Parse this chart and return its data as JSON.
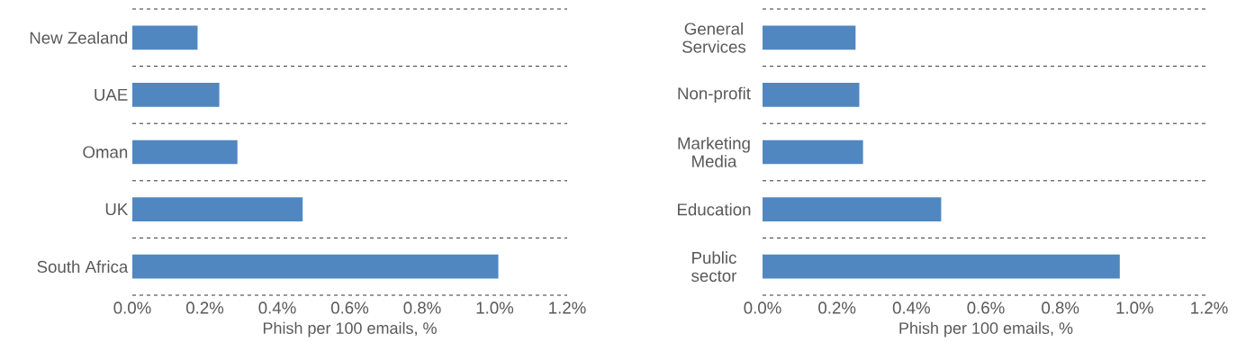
{
  "chart_data": [
    {
      "type": "bar",
      "orientation": "horizontal",
      "categories": [
        "New Zealand",
        "UAE",
        "Oman",
        "UK",
        "South Africa"
      ],
      "values": [
        0.18,
        0.24,
        0.29,
        0.47,
        1.01
      ],
      "color": "#5087c1",
      "xlim": [
        0,
        1.2
      ],
      "xticks": [
        {
          "value": 0,
          "label": "0.0%"
        },
        {
          "value": 0.2,
          "label": "0.2%"
        },
        {
          "value": 0.4,
          "label": "0.4%"
        },
        {
          "value": 0.6,
          "label": "0.6%"
        },
        {
          "value": 0.8,
          "label": "0.8%"
        },
        {
          "value": 1.0,
          "label": "1.0%"
        },
        {
          "value": 1.2,
          "label": "1.2%"
        }
      ],
      "xlabel": "Phish per 100 emails, %",
      "grid": "y"
    },
    {
      "type": "bar",
      "orientation": "horizontal",
      "categories": [
        "General Services",
        "Non-profit",
        "Marketing Media",
        "Education",
        "Public sector"
      ],
      "values": [
        0.25,
        0.26,
        0.27,
        0.48,
        0.96
      ],
      "color": "#5087c1",
      "xlim": [
        0,
        1.2
      ],
      "xticks": [
        {
          "value": 0,
          "label": "0.0%"
        },
        {
          "value": 0.2,
          "label": "0.2%"
        },
        {
          "value": 0.4,
          "label": "0.4%"
        },
        {
          "value": 0.6,
          "label": "0.6%"
        },
        {
          "value": 0.8,
          "label": "0.8%"
        },
        {
          "value": 1.0,
          "label": "1.0%"
        },
        {
          "value": 1.2,
          "label": "1.2%"
        }
      ],
      "xlabel": "Phish per 100 emails, %",
      "grid": "y"
    }
  ]
}
